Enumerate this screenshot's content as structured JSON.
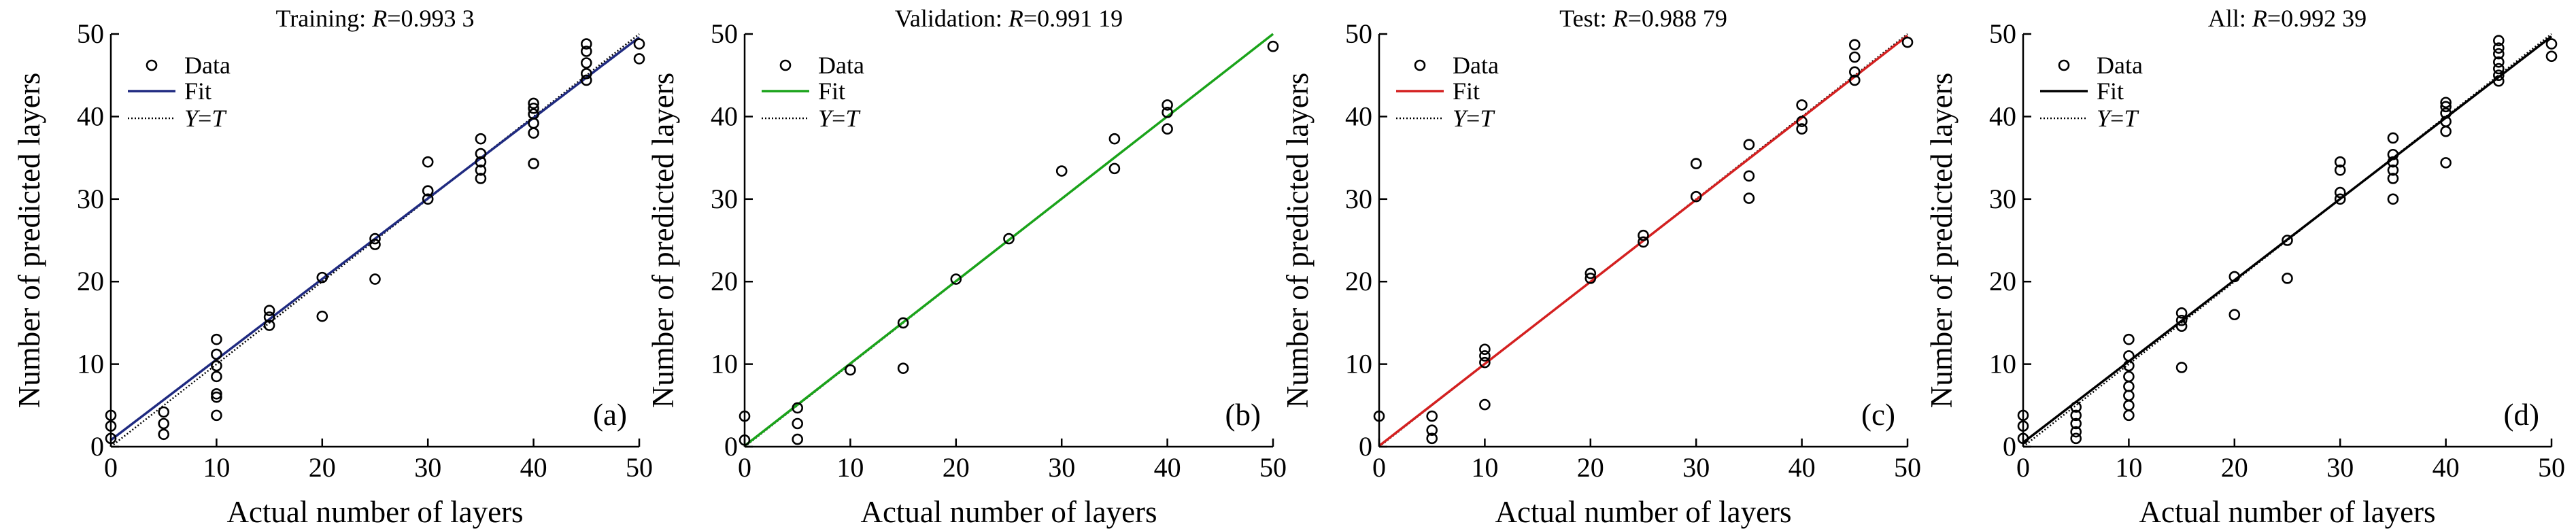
{
  "chart_data": [
    {
      "type": "scatter",
      "panel_label": "(a)",
      "title_prefix": "Training: ",
      "title_var": "R",
      "title_value": "=0.993 3",
      "xlabel": "Actual number of layers",
      "ylabel": "Number of predicted layers",
      "xlim": [
        0,
        50
      ],
      "ylim": [
        0,
        50
      ],
      "xticks": [
        "0",
        "10",
        "20",
        "30",
        "40",
        "50"
      ],
      "yticks": [
        "0",
        "10",
        "20",
        "30",
        "40",
        "50"
      ],
      "grid": false,
      "legend_position": "top-left",
      "legend": {
        "data": "Data",
        "fit": "Fit",
        "yt_var1": "Y",
        "yt_eq": "=",
        "yt_var2": "T"
      },
      "fit_color": "#1f2a80",
      "fit_line": [
        [
          0,
          0.8
        ],
        [
          50,
          49.6
        ]
      ],
      "points": [
        [
          0,
          1
        ],
        [
          0,
          2.5
        ],
        [
          0,
          3.8
        ],
        [
          5,
          1.5
        ],
        [
          5,
          2.8
        ],
        [
          5,
          4.2
        ],
        [
          10,
          3.8
        ],
        [
          10,
          6
        ],
        [
          10,
          6.4
        ],
        [
          10,
          8.5
        ],
        [
          10,
          9.8
        ],
        [
          10,
          11.2
        ],
        [
          10,
          13
        ],
        [
          15,
          14.7
        ],
        [
          15,
          15.7
        ],
        [
          15,
          16.5
        ],
        [
          20,
          15.8
        ],
        [
          20,
          20.5
        ],
        [
          25,
          20.3
        ],
        [
          25,
          24.5
        ],
        [
          25,
          25.2
        ],
        [
          30,
          30
        ],
        [
          30,
          31
        ],
        [
          30,
          34.5
        ],
        [
          35,
          32.5
        ],
        [
          35,
          33.5
        ],
        [
          35,
          34.5
        ],
        [
          35,
          35.5
        ],
        [
          35,
          37.3
        ],
        [
          40,
          34.3
        ],
        [
          40,
          38
        ],
        [
          40,
          39.2
        ],
        [
          40,
          40.3
        ],
        [
          40,
          41
        ],
        [
          40,
          41.6
        ],
        [
          45,
          44.4
        ],
        [
          45,
          45.2
        ],
        [
          45,
          46.5
        ],
        [
          45,
          47.9
        ],
        [
          45,
          48.8
        ],
        [
          50,
          47
        ],
        [
          50,
          48.8
        ]
      ]
    },
    {
      "type": "scatter",
      "panel_label": "(b)",
      "title_prefix": "Validation: ",
      "title_var": "R",
      "title_value": "=0.991 19",
      "xlabel": "Actual number of layers",
      "ylabel": "Number of predicted layers",
      "xlim": [
        0,
        50
      ],
      "ylim": [
        0,
        50
      ],
      "xticks": [
        "0",
        "10",
        "20",
        "30",
        "40",
        "50"
      ],
      "yticks": [
        "0",
        "10",
        "20",
        "30",
        "40",
        "50"
      ],
      "grid": false,
      "legend_position": "top-left",
      "legend": {
        "data": "Data",
        "fit": "Fit",
        "yt_var1": "Y",
        "yt_eq": "=",
        "yt_var2": "T"
      },
      "fit_color": "#1aa31a",
      "fit_line": [
        [
          0,
          0.1
        ],
        [
          50,
          50
        ]
      ],
      "points": [
        [
          0,
          0.8
        ],
        [
          0,
          3.7
        ],
        [
          5,
          0.9
        ],
        [
          5,
          2.8
        ],
        [
          5,
          4.7
        ],
        [
          10,
          9.3
        ],
        [
          15,
          9.5
        ],
        [
          15,
          15
        ],
        [
          20,
          20.3
        ],
        [
          25,
          25.2
        ],
        [
          30,
          33.4
        ],
        [
          35,
          33.7
        ],
        [
          35,
          37.3
        ],
        [
          40,
          38.5
        ],
        [
          40,
          40.5
        ],
        [
          40,
          41.4
        ],
        [
          50,
          48.5
        ]
      ]
    },
    {
      "type": "scatter",
      "panel_label": "(c)",
      "title_prefix": "Test: ",
      "title_var": "R",
      "title_value": "=0.988 79",
      "xlabel": "Actual number of layers",
      "ylabel": "Number of predicted layers",
      "xlim": [
        0,
        50
      ],
      "ylim": [
        0,
        50
      ],
      "xticks": [
        "0",
        "10",
        "20",
        "30",
        "40",
        "50"
      ],
      "yticks": [
        "0",
        "10",
        "20",
        "30",
        "40",
        "50"
      ],
      "grid": false,
      "legend_position": "top-left",
      "legend": {
        "data": "Data",
        "fit": "Fit",
        "yt_var1": "Y",
        "yt_eq": "=",
        "yt_var2": "T"
      },
      "fit_color": "#d42020",
      "fit_line": [
        [
          0,
          0.1
        ],
        [
          50,
          49.8
        ]
      ],
      "points": [
        [
          0,
          3.7
        ],
        [
          5,
          1
        ],
        [
          5,
          2
        ],
        [
          5,
          3.7
        ],
        [
          10,
          5.1
        ],
        [
          10,
          10.2
        ],
        [
          10,
          11
        ],
        [
          10,
          11.8
        ],
        [
          20,
          20.4
        ],
        [
          20,
          21
        ],
        [
          25,
          24.8
        ],
        [
          25,
          25.6
        ],
        [
          30,
          30.3
        ],
        [
          30,
          34.3
        ],
        [
          35,
          30.1
        ],
        [
          35,
          32.8
        ],
        [
          35,
          36.6
        ],
        [
          40,
          38.5
        ],
        [
          40,
          39.4
        ],
        [
          40,
          41.4
        ],
        [
          45,
          44.4
        ],
        [
          45,
          45.4
        ],
        [
          45,
          47.2
        ],
        [
          45,
          48.7
        ],
        [
          50,
          49
        ]
      ]
    },
    {
      "type": "scatter",
      "panel_label": "(d)",
      "title_prefix": "All: ",
      "title_var": "R",
      "title_value": "=0.992 39",
      "xlabel": "Actual number of layers",
      "ylabel": "Number of predicted layers",
      "xlim": [
        0,
        50
      ],
      "ylim": [
        0,
        50
      ],
      "xticks": [
        "0",
        "10",
        "20",
        "30",
        "40",
        "50"
      ],
      "yticks": [
        "0",
        "10",
        "20",
        "30",
        "40",
        "50"
      ],
      "grid": false,
      "legend_position": "top-left",
      "legend": {
        "data": "Data",
        "fit": "Fit",
        "yt_var1": "Y",
        "yt_eq": "=",
        "yt_var2": "T"
      },
      "fit_color": "#000000",
      "fit_line": [
        [
          0,
          0.5
        ],
        [
          50,
          49.7
        ]
      ],
      "points": [
        [
          0,
          1
        ],
        [
          0,
          2.5
        ],
        [
          0,
          3.8
        ],
        [
          5,
          1
        ],
        [
          5,
          1.8
        ],
        [
          5,
          2.8
        ],
        [
          5,
          3.8
        ],
        [
          5,
          4.8
        ],
        [
          10,
          3.8
        ],
        [
          10,
          5
        ],
        [
          10,
          6.2
        ],
        [
          10,
          7.3
        ],
        [
          10,
          8.5
        ],
        [
          10,
          9.8
        ],
        [
          10,
          11
        ],
        [
          10,
          13
        ],
        [
          15,
          9.6
        ],
        [
          15,
          14.6
        ],
        [
          15,
          15.3
        ],
        [
          15,
          16.2
        ],
        [
          20,
          16
        ],
        [
          20,
          20.6
        ],
        [
          25,
          20.4
        ],
        [
          25,
          25
        ],
        [
          30,
          30
        ],
        [
          30,
          30.8
        ],
        [
          30,
          33.5
        ],
        [
          30,
          34.5
        ],
        [
          35,
          30
        ],
        [
          35,
          32.5
        ],
        [
          35,
          33.5
        ],
        [
          35,
          34.5
        ],
        [
          35,
          35.4
        ],
        [
          35,
          37.4
        ],
        [
          40,
          34.4
        ],
        [
          40,
          38.2
        ],
        [
          40,
          39.4
        ],
        [
          40,
          40.4
        ],
        [
          40,
          41.2
        ],
        [
          40,
          41.7
        ],
        [
          45,
          44.3
        ],
        [
          45,
          45
        ],
        [
          45,
          45.8
        ],
        [
          45,
          46.6
        ],
        [
          45,
          47.6
        ],
        [
          45,
          48.3
        ],
        [
          45,
          49.2
        ],
        [
          50,
          47.3
        ],
        [
          50,
          48.8
        ]
      ]
    }
  ]
}
